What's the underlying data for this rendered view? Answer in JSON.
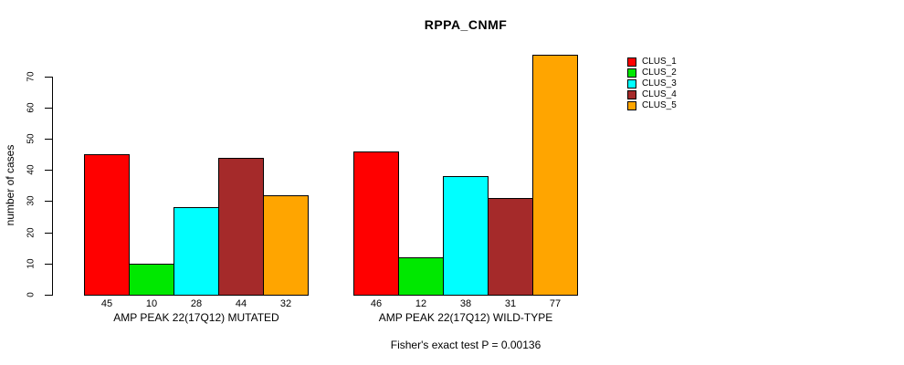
{
  "chart_data": {
    "type": "bar",
    "title": "RPPA_CNMF",
    "ylabel": "number of cases",
    "xlabel": "",
    "yticks": [
      0,
      10,
      20,
      30,
      40,
      50,
      60,
      70
    ],
    "ylim": [
      0,
      78
    ],
    "grid": false,
    "legend_position": "right-outside",
    "bar_value_labels_shown": true,
    "categories": [
      "AMP PEAK 22(17Q12) MUTATED",
      "AMP PEAK 22(17Q12) WILD-TYPE"
    ],
    "series": [
      {
        "name": "CLUS_1",
        "color": "#FF0000",
        "values": [
          45,
          46
        ]
      },
      {
        "name": "CLUS_2",
        "color": "#00E800",
        "values": [
          10,
          12
        ]
      },
      {
        "name": "CLUS_3",
        "color": "#00FFFF",
        "values": [
          28,
          38
        ]
      },
      {
        "name": "CLUS_4",
        "color": "#A52A2A",
        "values": [
          44,
          31
        ]
      },
      {
        "name": "CLUS_5",
        "color": "#FFA500",
        "values": [
          32,
          77
        ]
      }
    ],
    "annotation": "Fisher's exact test P = 0.00136"
  },
  "colors": {
    "axis": "#000000",
    "background": "#FFFFFF"
  }
}
